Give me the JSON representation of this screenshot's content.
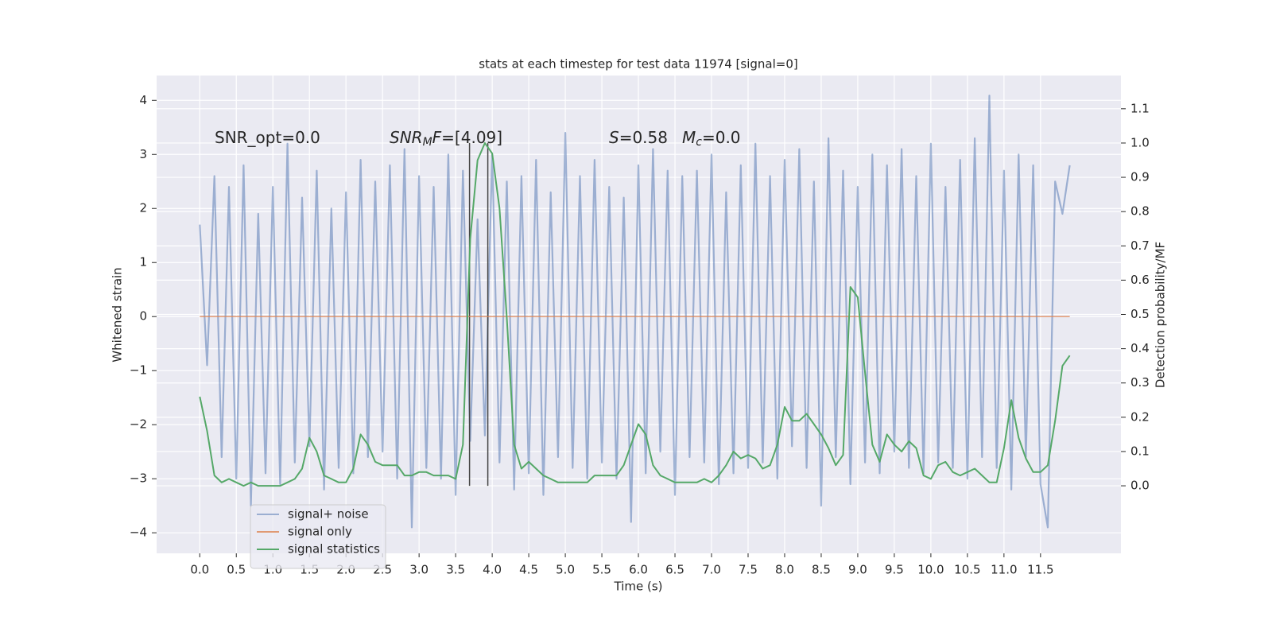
{
  "chart_data": {
    "type": "line",
    "title": "stats at each timestep for test data 11974 [signal=0]",
    "xlabel": "Time (s)",
    "ylabel": "Whitened strain",
    "y2label": "Detection probability/MF",
    "xlim": [
      -0.59,
      12.6
    ],
    "ylim": [
      -4.38,
      4.46
    ],
    "y2lim": [
      -0.197,
      1.197
    ],
    "grid": true,
    "legend": "lower left",
    "xticks": [
      {
        "value": 0,
        "label": "0.0"
      },
      0.5,
      {
        "value": 1,
        "label": "1.0"
      },
      1.5,
      {
        "value": 2,
        "label": "2.0"
      },
      2.5,
      {
        "value": 3,
        "label": "3.0"
      },
      3.5,
      {
        "value": 4,
        "label": "4.0"
      },
      4.5,
      {
        "value": 5,
        "label": "5.0"
      },
      5.5,
      {
        "value": 6,
        "label": "6.0"
      },
      6.5,
      {
        "value": 7,
        "label": "7.0"
      },
      7.5,
      {
        "value": 8,
        "label": "8.0"
      },
      8.5,
      {
        "value": 9,
        "label": "9.0"
      },
      9.5,
      {
        "value": 10,
        "label": "10.0"
      },
      10.5,
      {
        "value": 11,
        "label": "11.0"
      },
      11.5
    ],
    "yticks": [
      {
        "value": -4,
        "label": "−4"
      },
      {
        "value": -3,
        "label": "−3"
      },
      {
        "value": -2,
        "label": "−2"
      },
      {
        "value": -1,
        "label": "−1"
      },
      0,
      1,
      2,
      3,
      4
    ],
    "y2ticks": [
      {
        "value": 0,
        "label": "0.0"
      },
      0.1,
      0.2,
      0.3,
      0.4,
      0.5,
      0.6,
      0.7,
      0.8,
      0.9,
      {
        "value": 1,
        "label": "1.0"
      },
      1.1
    ],
    "x": [
      0.0,
      0.1,
      0.2,
      0.3,
      0.4,
      0.5,
      0.6,
      0.7,
      0.8,
      0.9,
      1.0,
      1.1,
      1.2,
      1.3,
      1.4,
      1.5,
      1.6,
      1.7,
      1.8,
      1.9,
      2.0,
      2.1,
      2.2,
      2.3,
      2.4,
      2.5,
      2.6,
      2.7,
      2.8,
      2.9,
      3.0,
      3.1,
      3.2,
      3.3,
      3.4,
      3.5,
      3.6,
      3.7,
      3.8,
      3.9,
      4.0,
      4.1,
      4.2,
      4.3,
      4.4,
      4.5,
      4.6,
      4.7,
      4.8,
      4.9,
      5.0,
      5.1,
      5.2,
      5.3,
      5.4,
      5.5,
      5.6,
      5.7,
      5.8,
      5.9,
      6.0,
      6.1,
      6.2,
      6.3,
      6.4,
      6.5,
      6.6,
      6.7,
      6.8,
      6.9,
      7.0,
      7.1,
      7.2,
      7.3,
      7.4,
      7.5,
      7.6,
      7.7,
      7.8,
      7.9,
      8.0,
      8.1,
      8.2,
      8.3,
      8.4,
      8.5,
      8.6,
      8.7,
      8.8,
      8.9,
      9.0,
      9.1,
      9.2,
      9.3,
      9.4,
      9.5,
      9.6,
      9.7,
      9.8,
      9.9,
      10.0,
      10.1,
      10.2,
      10.3,
      10.4,
      10.5,
      10.6,
      10.7,
      10.8,
      10.9,
      11.0,
      11.1,
      11.2,
      11.3,
      11.4,
      11.5,
      11.6,
      11.7,
      11.8,
      11.9
    ],
    "series": [
      {
        "name": "signal+ noise",
        "color": "#4c72b0",
        "axis": "y",
        "values": [
          1.7,
          -0.9,
          2.6,
          -2.6,
          2.4,
          -3.0,
          2.8,
          -3.5,
          1.9,
          -2.9,
          2.4,
          -3.1,
          3.2,
          -2.7,
          2.2,
          -2.4,
          2.7,
          -3.2,
          2.0,
          -2.8,
          2.3,
          -2.9,
          2.9,
          -2.6,
          2.5,
          -2.5,
          2.8,
          -3.0,
          3.1,
          -3.9,
          2.6,
          -2.8,
          2.4,
          -3.0,
          3.0,
          -3.3,
          2.7,
          -2.3,
          1.8,
          -2.2,
          3.0,
          -2.7,
          2.5,
          -3.2,
          2.6,
          -2.9,
          2.9,
          -3.3,
          2.3,
          -2.6,
          3.4,
          -2.8,
          2.6,
          -3.0,
          2.9,
          -2.7,
          2.4,
          -3.0,
          2.2,
          -3.8,
          2.8,
          -2.9,
          3.1,
          -2.5,
          2.7,
          -3.3,
          2.6,
          -2.6,
          2.7,
          -2.7,
          3.0,
          -3.1,
          2.3,
          -2.9,
          2.8,
          -2.8,
          3.2,
          -2.7,
          2.6,
          -3.0,
          2.9,
          -2.4,
          3.1,
          -2.8,
          2.5,
          -3.5,
          3.3,
          -2.6,
          2.7,
          -3.1,
          2.4,
          -2.7,
          3.0,
          -2.9,
          2.8,
          -2.5,
          3.1,
          -2.8,
          2.6,
          -2.9,
          3.2,
          -2.7,
          2.4,
          -2.8,
          2.9,
          -3.0,
          3.3,
          -2.6,
          4.09,
          -2.8,
          2.7,
          -3.2,
          3.0,
          -2.6,
          2.8,
          -3.1,
          -3.9,
          2.5,
          1.9,
          2.8
        ]
      },
      {
        "name": "signal only",
        "color": "#dd8452",
        "axis": "y",
        "values": [
          0,
          0,
          0,
          0,
          0,
          0,
          0,
          0,
          0,
          0,
          0,
          0,
          0,
          0,
          0,
          0,
          0,
          0,
          0,
          0,
          0,
          0,
          0,
          0,
          0,
          0,
          0,
          0,
          0,
          0,
          0,
          0,
          0,
          0,
          0,
          0,
          0,
          0,
          0,
          0,
          0,
          0,
          0,
          0,
          0,
          0,
          0,
          0,
          0,
          0,
          0,
          0,
          0,
          0,
          0,
          0,
          0,
          0,
          0,
          0,
          0,
          0,
          0,
          0,
          0,
          0,
          0,
          0,
          0,
          0,
          0,
          0,
          0,
          0,
          0,
          0,
          0,
          0,
          0,
          0,
          0,
          0,
          0,
          0,
          0,
          0,
          0,
          0,
          0,
          0,
          0,
          0,
          0,
          0,
          0,
          0,
          0,
          0,
          0,
          0,
          0,
          0,
          0,
          0,
          0,
          0,
          0,
          0,
          0,
          0,
          0,
          0,
          0,
          0,
          0,
          0,
          0,
          0,
          0,
          0
        ]
      },
      {
        "name": "signal statistics",
        "color": "#55a868",
        "axis": "y2",
        "values": [
          0.26,
          0.16,
          0.03,
          0.01,
          0.02,
          0.01,
          0.0,
          0.01,
          0.0,
          0.0,
          0.0,
          0.0,
          0.01,
          0.02,
          0.05,
          0.14,
          0.1,
          0.03,
          0.02,
          0.01,
          0.01,
          0.05,
          0.15,
          0.12,
          0.07,
          0.06,
          0.06,
          0.06,
          0.03,
          0.03,
          0.04,
          0.04,
          0.03,
          0.03,
          0.03,
          0.02,
          0.12,
          0.72,
          0.95,
          1.0,
          0.97,
          0.81,
          0.49,
          0.12,
          0.05,
          0.07,
          0.05,
          0.03,
          0.02,
          0.01,
          0.01,
          0.01,
          0.01,
          0.01,
          0.03,
          0.03,
          0.03,
          0.03,
          0.06,
          0.12,
          0.18,
          0.15,
          0.06,
          0.03,
          0.02,
          0.01,
          0.01,
          0.01,
          0.01,
          0.02,
          0.01,
          0.03,
          0.06,
          0.1,
          0.08,
          0.09,
          0.08,
          0.05,
          0.06,
          0.12,
          0.23,
          0.19,
          0.19,
          0.21,
          0.18,
          0.15,
          0.11,
          0.06,
          0.09,
          0.58,
          0.55,
          0.33,
          0.12,
          0.07,
          0.15,
          0.12,
          0.1,
          0.13,
          0.11,
          0.03,
          0.02,
          0.06,
          0.07,
          0.04,
          0.03,
          0.04,
          0.05,
          0.03,
          0.01,
          0.01,
          0.11,
          0.25,
          0.14,
          0.08,
          0.04,
          0.04,
          0.06,
          0.19,
          0.35,
          0.38
        ]
      }
    ],
    "vlines": [
      {
        "x": 3.69,
        "ymin": 0.0,
        "ymax": 1.0,
        "color": "#444444"
      },
      {
        "x": 3.94,
        "ymin": 0.0,
        "ymax": 1.0,
        "color": "#444444"
      }
    ],
    "annotations": [
      {
        "parts": [
          {
            "text": "SNR_opt=0.0"
          }
        ]
      },
      {
        "parts": [
          {
            "text": "SNR",
            "italic": true
          },
          {
            "text": "M",
            "italic": true,
            "sub": true
          },
          {
            "text": "F",
            "italic": true
          },
          {
            "text": "=[4.09]"
          }
        ]
      },
      {
        "parts": [
          {
            "text": "S",
            "italic": true
          },
          {
            "text": "=0.58"
          }
        ]
      },
      {
        "parts": [
          {
            "text": "M",
            "italic": true
          },
          {
            "text": "c",
            "italic": true,
            "sub": true
          },
          {
            "text": "=0.0"
          }
        ]
      }
    ]
  }
}
